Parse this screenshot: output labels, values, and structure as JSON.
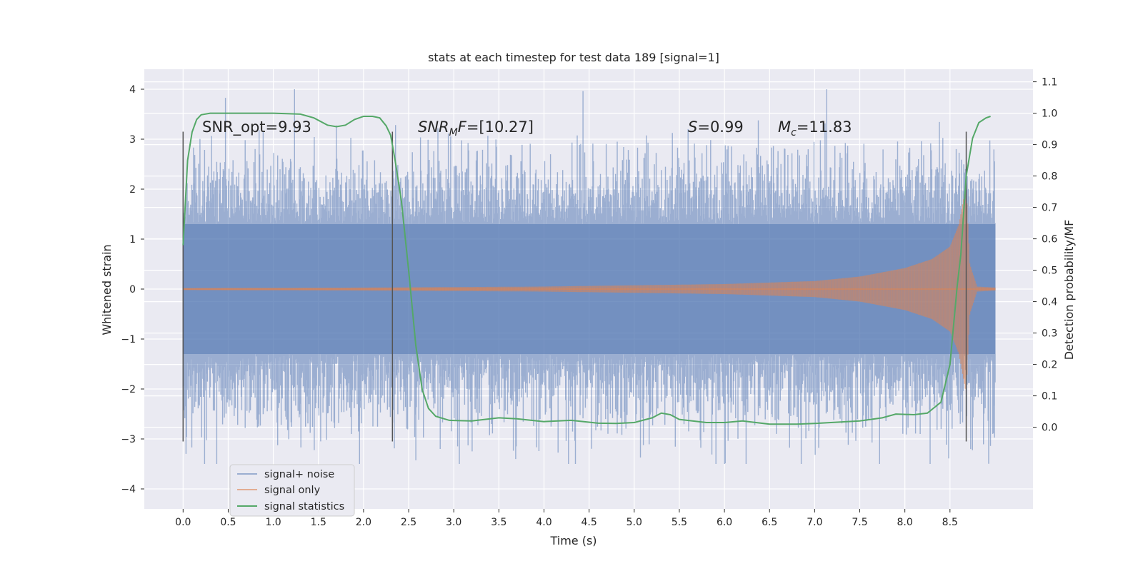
{
  "chart_data": {
    "type": "line",
    "title": "stats at each timestep for test data 189 [signal=1]",
    "xlabel": "Time (s)",
    "ylabel_left": "Whitened strain",
    "ylabel_right": "Detection probability/MF",
    "xlim": [
      -0.43,
      9.42
    ],
    "ylim_left": [
      -4.4,
      4.4
    ],
    "ylim_right": [
      -0.26,
      1.14
    ],
    "xticks": [
      "0.0",
      "0.5",
      "1.0",
      "1.5",
      "2.0",
      "2.5",
      "3.0",
      "3.5",
      "4.0",
      "4.5",
      "5.0",
      "5.5",
      "6.0",
      "6.5",
      "7.0",
      "7.5",
      "8.0",
      "8.5"
    ],
    "yticks_left": [
      "−4",
      "−3",
      "−2",
      "−1",
      "0",
      "1",
      "2",
      "3",
      "4"
    ],
    "yticks_right": [
      "0.0",
      "0.1",
      "0.2",
      "0.3",
      "0.4",
      "0.5",
      "0.6",
      "0.7",
      "0.8",
      "0.9",
      "1.0",
      "1.1"
    ],
    "grid": true,
    "legend_placement": "lower-left",
    "annotations": {
      "snr_opt": "SNR_opt=9.93",
      "snr_mf_base": "SNR",
      "snr_mf_sub": "M",
      "snr_mf_mid": "F",
      "snr_mf_val": "=[10.27]",
      "s_label": "S",
      "s_val": "=0.99",
      "mc_base": "M",
      "mc_sub": "c",
      "mc_val": "=11.83"
    },
    "vertical_markers_x": [
      0.0,
      2.32,
      8.68
    ],
    "series": [
      {
        "name": "signal+ noise",
        "color": "#4c72b0",
        "kind": "noise",
        "x_range": [
          0.0,
          9.0
        ],
        "band_core": [
          -1.3,
          1.3
        ],
        "spike_max": [
          -3.5,
          4.0
        ]
      },
      {
        "name": "signal only",
        "color": "#dd8452",
        "kind": "chirp",
        "x_range": [
          0.0,
          9.0
        ],
        "envelope": [
          [
            0.0,
            0.02
          ],
          [
            2.0,
            0.03
          ],
          [
            4.0,
            0.05
          ],
          [
            6.0,
            0.1
          ],
          [
            7.0,
            0.16
          ],
          [
            7.5,
            0.25
          ],
          [
            8.0,
            0.42
          ],
          [
            8.3,
            0.6
          ],
          [
            8.5,
            0.85
          ],
          [
            8.6,
            1.3
          ],
          [
            8.65,
            1.8
          ],
          [
            8.68,
            2.1
          ],
          [
            8.72,
            0.5
          ],
          [
            8.8,
            0.05
          ],
          [
            9.0,
            0.03
          ]
        ]
      },
      {
        "name": "signal statistics",
        "color": "#55a868",
        "kind": "line",
        "axis": "right",
        "points": [
          [
            0.0,
            0.58
          ],
          [
            0.05,
            0.85
          ],
          [
            0.1,
            0.94
          ],
          [
            0.15,
            0.98
          ],
          [
            0.2,
            0.995
          ],
          [
            0.3,
            1.0
          ],
          [
            1.0,
            1.0
          ],
          [
            1.3,
            0.997
          ],
          [
            1.45,
            0.985
          ],
          [
            1.6,
            0.962
          ],
          [
            1.7,
            0.957
          ],
          [
            1.8,
            0.962
          ],
          [
            1.9,
            0.98
          ],
          [
            2.0,
            0.99
          ],
          [
            2.1,
            0.99
          ],
          [
            2.18,
            0.985
          ],
          [
            2.25,
            0.96
          ],
          [
            2.3,
            0.93
          ],
          [
            2.35,
            0.85
          ],
          [
            2.42,
            0.72
          ],
          [
            2.5,
            0.5
          ],
          [
            2.58,
            0.26
          ],
          [
            2.65,
            0.12
          ],
          [
            2.72,
            0.06
          ],
          [
            2.8,
            0.035
          ],
          [
            2.95,
            0.022
          ],
          [
            3.2,
            0.02
          ],
          [
            3.5,
            0.03
          ],
          [
            3.7,
            0.027
          ],
          [
            4.0,
            0.018
          ],
          [
            4.3,
            0.022
          ],
          [
            4.6,
            0.013
          ],
          [
            4.8,
            0.012
          ],
          [
            5.0,
            0.015
          ],
          [
            5.2,
            0.03
          ],
          [
            5.3,
            0.045
          ],
          [
            5.4,
            0.04
          ],
          [
            5.5,
            0.025
          ],
          [
            5.8,
            0.015
          ],
          [
            6.0,
            0.015
          ],
          [
            6.2,
            0.02
          ],
          [
            6.5,
            0.01
          ],
          [
            6.8,
            0.01
          ],
          [
            7.0,
            0.012
          ],
          [
            7.5,
            0.02
          ],
          [
            7.75,
            0.03
          ],
          [
            7.9,
            0.042
          ],
          [
            8.1,
            0.04
          ],
          [
            8.25,
            0.045
          ],
          [
            8.4,
            0.08
          ],
          [
            8.5,
            0.2
          ],
          [
            8.58,
            0.45
          ],
          [
            8.62,
            0.55
          ],
          [
            8.68,
            0.8
          ],
          [
            8.75,
            0.92
          ],
          [
            8.82,
            0.97
          ],
          [
            8.9,
            0.985
          ],
          [
            8.95,
            0.99
          ]
        ]
      }
    ]
  }
}
